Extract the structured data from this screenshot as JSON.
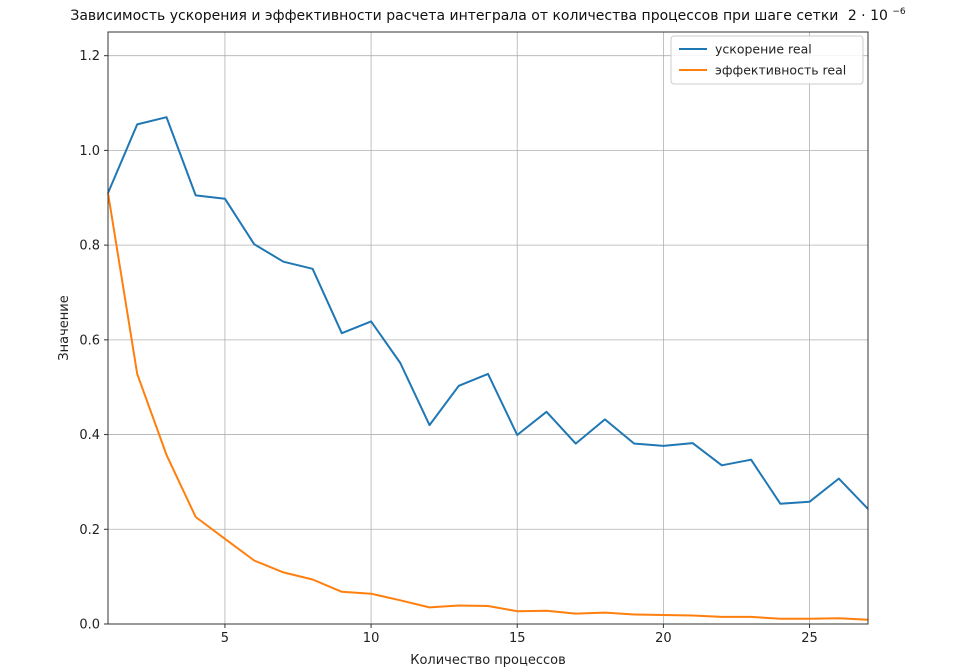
{
  "chart_data": {
    "type": "line",
    "title": "Зависимость ускорения и эффективности расчета интеграла от количества процессов при шаге сетки",
    "title_formula_base": "2 · 10",
    "title_formula_exp": "−6",
    "xlabel": "Количество процессов",
    "ylabel": "Значение",
    "xlim": [
      1,
      27
    ],
    "ylim": [
      0,
      1.25
    ],
    "xticks": [
      5,
      10,
      15,
      20,
      25
    ],
    "yticks": [
      0.0,
      0.2,
      0.4,
      0.6,
      0.8,
      1.0,
      1.2
    ],
    "grid": true,
    "legend_position": "top-right",
    "x": [
      1,
      2,
      3,
      4,
      5,
      6,
      7,
      8,
      9,
      10,
      11,
      12,
      13,
      14,
      15,
      16,
      17,
      18,
      19,
      20,
      21,
      22,
      23,
      24,
      25,
      26,
      27
    ],
    "series": [
      {
        "name": "ускорение real",
        "color": "#1f77b4",
        "values": [
          0.91,
          1.055,
          1.07,
          0.905,
          0.898,
          0.802,
          0.765,
          0.75,
          0.614,
          0.639,
          0.551,
          0.42,
          0.503,
          0.528,
          0.399,
          0.448,
          0.381,
          0.432,
          0.381,
          0.376,
          0.382,
          0.335,
          0.347,
          0.254,
          0.258,
          0.307,
          0.243
        ]
      },
      {
        "name": "эффективность real",
        "color": "#ff7f0e",
        "values": [
          0.91,
          0.528,
          0.357,
          0.226,
          0.18,
          0.134,
          0.109,
          0.094,
          0.068,
          0.064,
          0.05,
          0.035,
          0.039,
          0.038,
          0.027,
          0.028,
          0.022,
          0.024,
          0.02,
          0.019,
          0.018,
          0.015,
          0.015,
          0.011,
          0.011,
          0.012,
          0.009
        ]
      }
    ]
  }
}
